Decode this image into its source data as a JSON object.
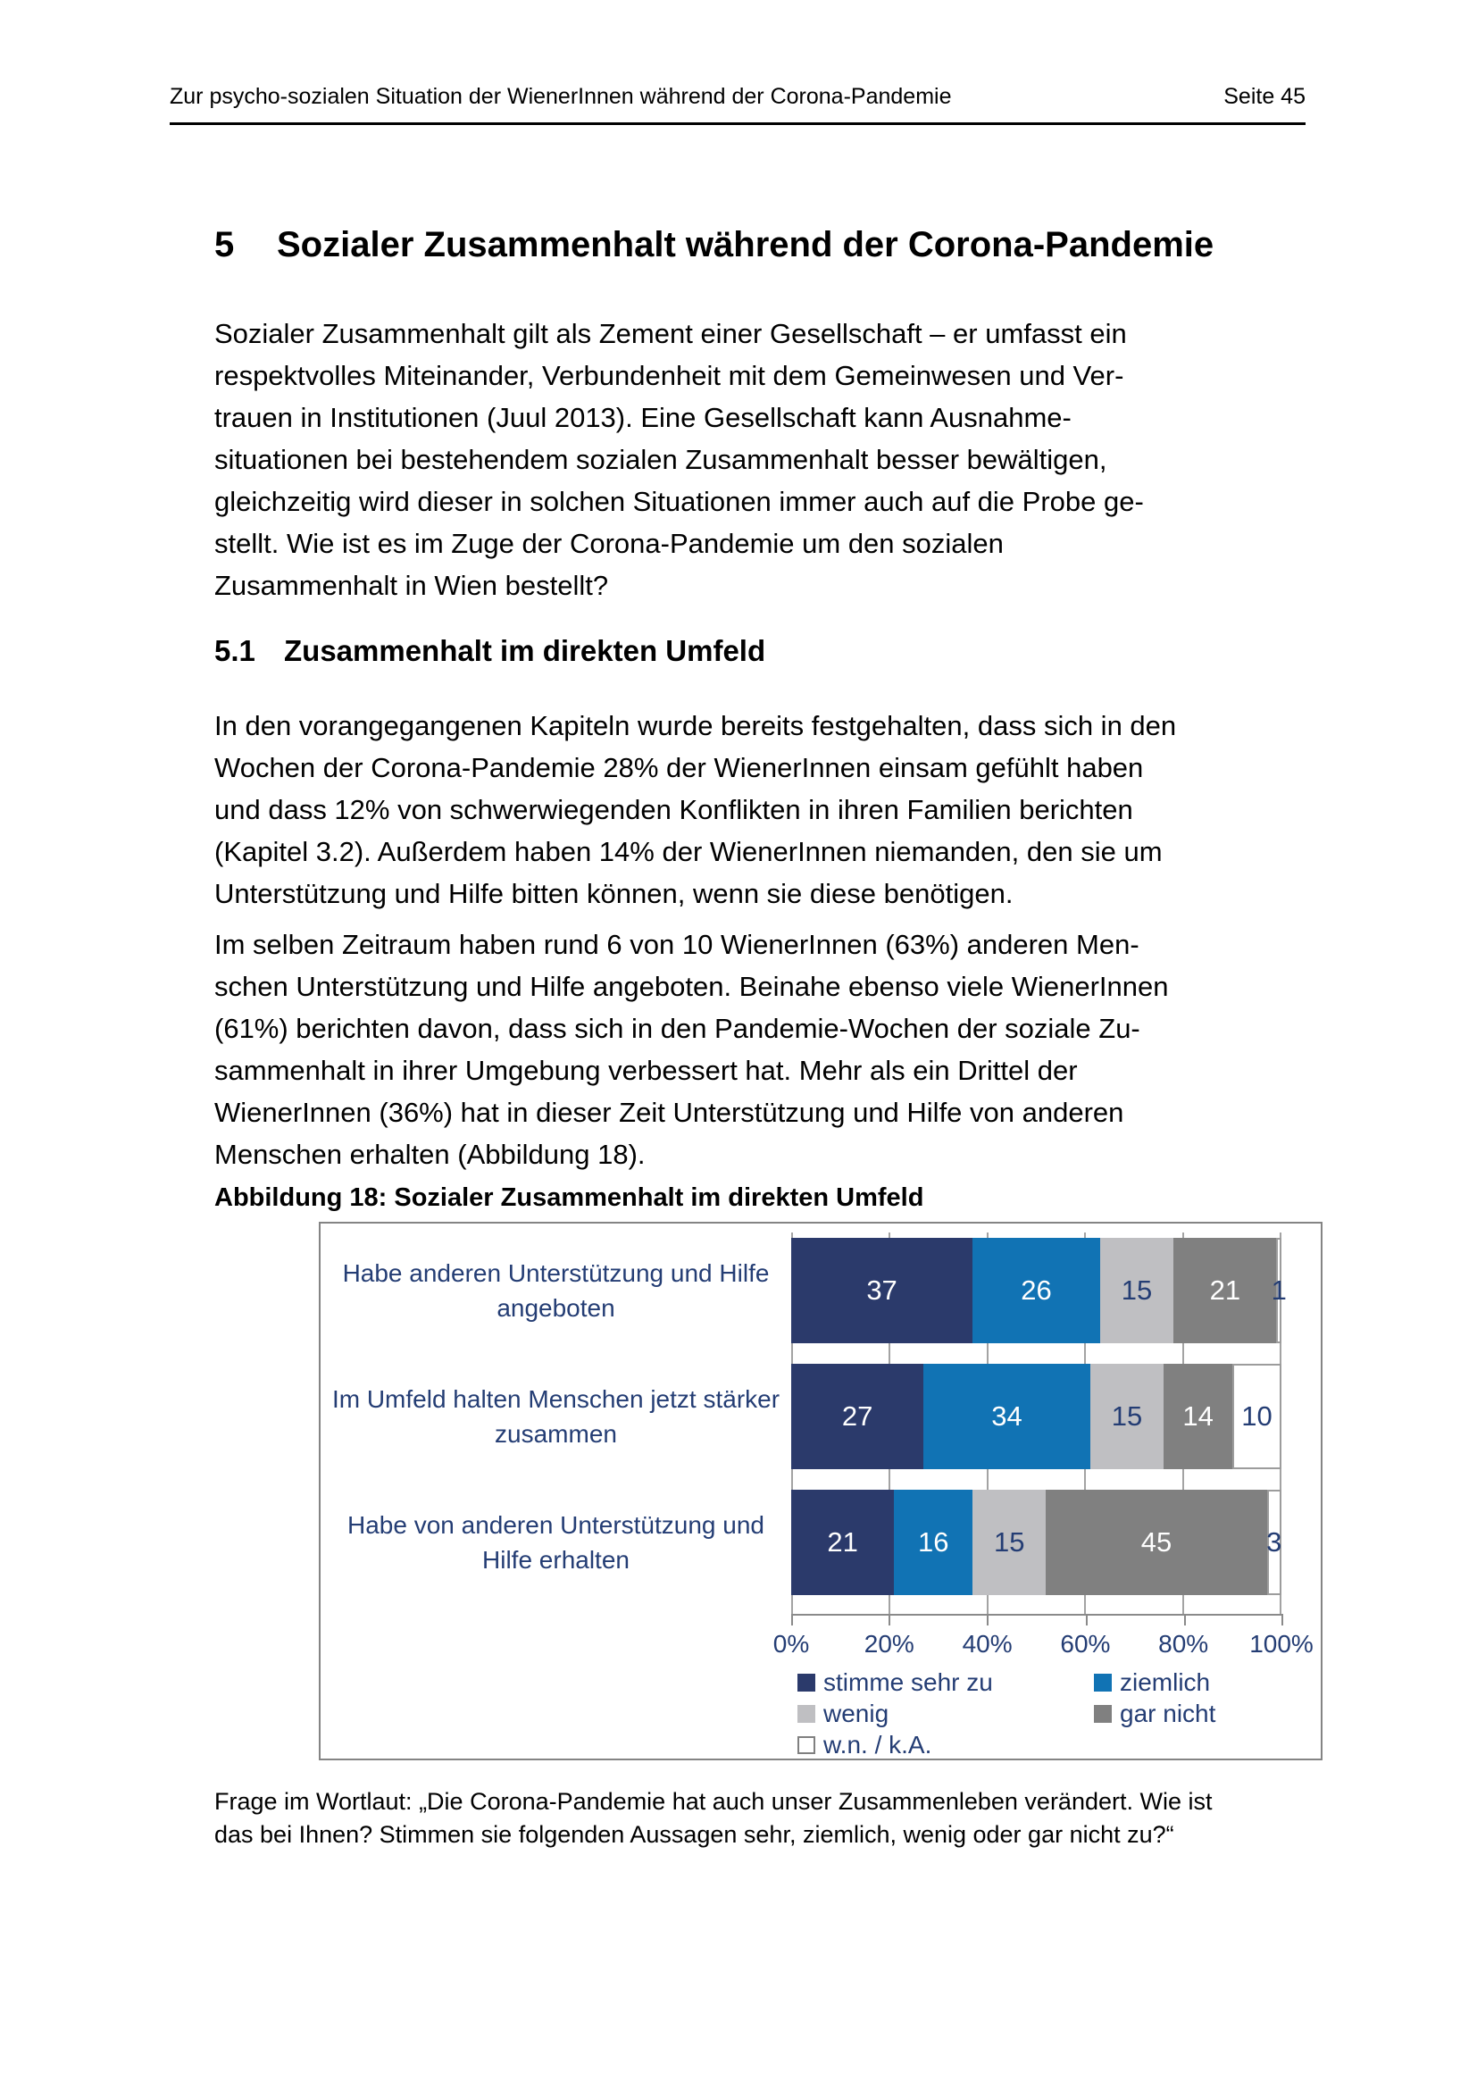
{
  "header": {
    "left": "Zur psycho-sozialen Situation der WienerInnen während der Corona-Pandemie",
    "right": "Seite 45"
  },
  "section": {
    "number": "5",
    "title": "Sozialer Zusammenhalt während der Corona-Pandemie"
  },
  "subsection": {
    "number": "5.1",
    "title": "Zusammenhalt im direkten Umfeld"
  },
  "paragraphs": {
    "p1": [
      "Sozialer Zusammenhalt gilt als Zement einer Gesellschaft – er umfasst ein",
      "respektvolles Miteinander, Verbundenheit mit dem Gemeinwesen und Ver-",
      "trauen in Institutionen (Juul 2013). Eine Gesellschaft kann Ausnahme-",
      "situationen bei bestehendem sozialen Zusammenhalt besser bewältigen,",
      "gleichzeitig wird dieser in solchen Situationen immer auch auf die Probe ge-",
      "stellt. Wie ist es im Zuge der Corona-Pandemie um den sozialen",
      "Zusammenhalt in Wien bestellt?"
    ],
    "p2": [
      "In den vorangegangenen Kapiteln wurde bereits festgehalten, dass sich in den",
      "Wochen der Corona-Pandemie 28% der WienerInnen einsam gefühlt haben",
      "und dass 12% von schwerwiegenden Konflikten in ihren Familien berichten",
      "(Kapitel 3.2). Außerdem haben 14% der WienerInnen niemanden, den sie um",
      "Unterstützung und Hilfe bitten können, wenn sie diese benötigen."
    ],
    "p3": [
      "Im selben Zeitraum haben rund 6 von 10 WienerInnen (63%) anderen Men-",
      "schen Unterstützung und Hilfe angeboten. Beinahe ebenso viele WienerInnen",
      "(61%) berichten davon, dass sich in den Pandemie-Wochen der soziale Zu-",
      "sammenhalt in ihrer Umgebung verbessert hat. Mehr als ein Drittel der",
      "WienerInnen (36%) hat in dieser Zeit Unterstützung und Hilfe von anderen",
      "Menschen erhalten (Abbildung 18)."
    ]
  },
  "figure": {
    "caption": "Abbildung 18: Sozialer Zusammenhalt im direkten Umfeld",
    "footnote": [
      "Frage im Wortlaut: „Die Corona-Pandemie hat auch unser Zusammenleben verändert. Wie ist",
      "das bei Ihnen? Stimmen sie folgenden Aussagen sehr, ziemlich, wenig oder gar nicht zu?“"
    ]
  },
  "chart_data": {
    "type": "bar",
    "orientation": "horizontal",
    "stacked": true,
    "title": "Abbildung 18: Sozialer Zusammenhalt im direkten Umfeld",
    "categories": [
      "Habe anderen Unterstützung und Hilfe angeboten",
      "Im Umfeld halten Menschen jetzt stärker zusammen",
      "Habe von anderen Unterstützung und Hilfe erhalten"
    ],
    "categories_wrapped": [
      [
        "Habe anderen Unterstützung und Hilfe",
        "angeboten"
      ],
      [
        "Im Umfeld halten Menschen jetzt stärker",
        "zusammen"
      ],
      [
        "Habe von anderen Unterstützung und",
        "Hilfe erhalten"
      ]
    ],
    "series": [
      {
        "name": "stimme sehr zu",
        "color": "#2B3A6B",
        "label_color": "#FFFFFF",
        "values": [
          37,
          27,
          21
        ]
      },
      {
        "name": "ziemlich",
        "color": "#1173B4",
        "label_color": "#FFFFFF",
        "values": [
          26,
          34,
          16
        ]
      },
      {
        "name": "wenig",
        "color": "#BFBFC2",
        "label_color": "#243D74",
        "values": [
          15,
          15,
          15
        ]
      },
      {
        "name": "gar nicht",
        "color": "#808080",
        "label_color": "#FFFFFF",
        "values": [
          21,
          14,
          45
        ]
      },
      {
        "name": "w.n. / k.A.",
        "color": "#FFFFFF",
        "label_color": "#243D74",
        "border": "#9c9c9c",
        "values": [
          1,
          10,
          3
        ]
      }
    ],
    "x_axis": {
      "min": 0,
      "max": 100,
      "tick_values": [
        0,
        20,
        40,
        60,
        80,
        100
      ],
      "ticks": [
        "0%",
        "20%",
        "40%",
        "60%",
        "80%",
        "100%"
      ]
    },
    "legend_position": "bottom-inside",
    "grid": true,
    "chart_text_color": "#243D74",
    "gridline_color": "#a3a3a3"
  }
}
